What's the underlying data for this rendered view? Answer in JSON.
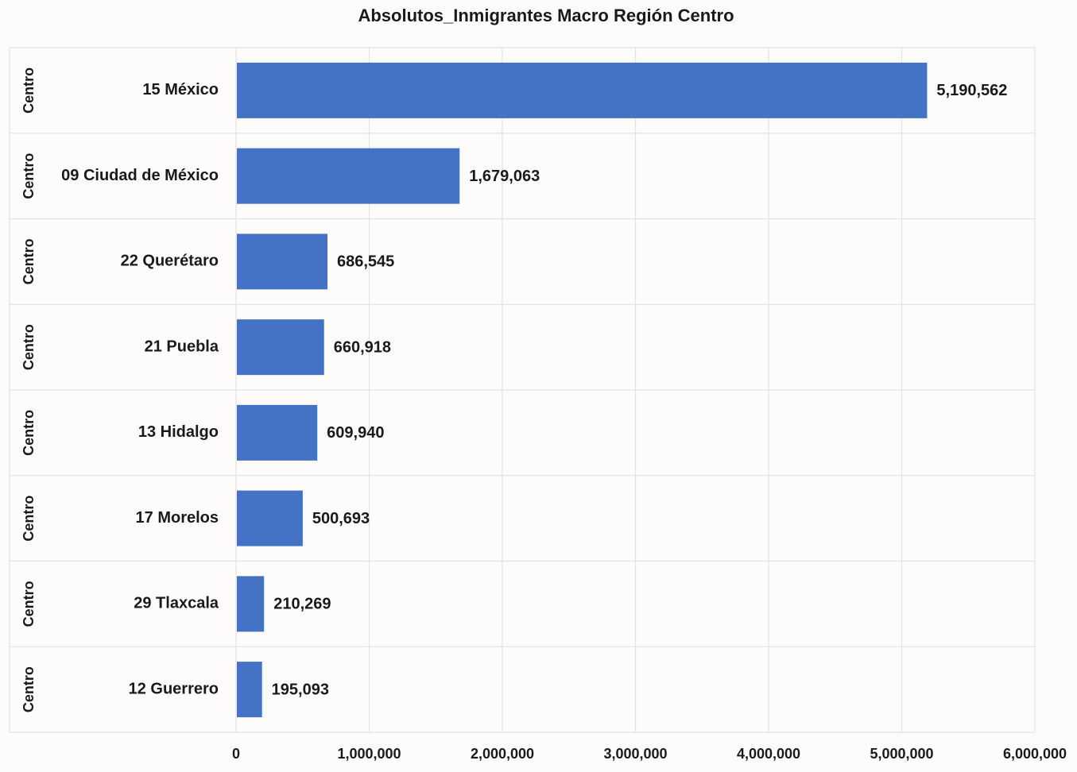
{
  "chart_data": {
    "type": "bar",
    "orientation": "horizontal",
    "title": "Absolutos_Inmigrantes  Macro Región Centro",
    "group_labels": [
      "Centro",
      "Centro",
      "Centro",
      "Centro",
      "Centro",
      "Centro",
      "Centro",
      "Centro"
    ],
    "categories": [
      "15 México",
      "09 Ciudad de México",
      "22 Querétaro",
      "21 Puebla",
      "13 Hidalgo",
      "17 Morelos",
      "29 Tlaxcala",
      "12 Guerrero"
    ],
    "values": [
      5190562,
      1679063,
      686545,
      660918,
      609940,
      500693,
      210269,
      195093
    ],
    "data_labels": [
      "5,190,562",
      "1,679,063",
      "686,545",
      "660,918",
      "609,940",
      "500,693",
      "210,269",
      "195,093"
    ],
    "xlim": [
      0,
      6000000
    ],
    "x_ticks": [
      0,
      1000000,
      2000000,
      3000000,
      4000000,
      5000000,
      6000000
    ],
    "x_tick_labels": [
      "0",
      "1,000,000",
      "2,000,000",
      "3,000,000",
      "4,000,000",
      "5,000,000",
      "6,000,000"
    ],
    "xlabel": "",
    "ylabel": "",
    "grid": true,
    "legend": "none",
    "bar_color": "#4472c4",
    "grid_color": "#e3e3e3"
  }
}
